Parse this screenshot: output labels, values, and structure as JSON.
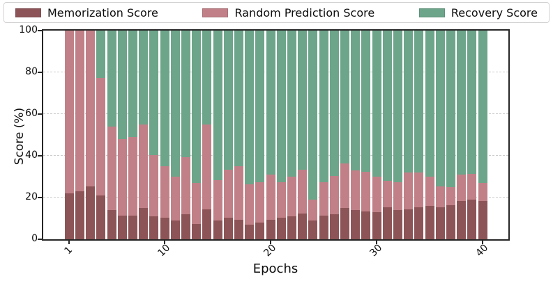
{
  "colors": {
    "memorization": "#8D5457",
    "random_prediction": "#C18087",
    "recovery": "#6DA58A",
    "spine": "#262626",
    "gridline": "#cccccc",
    "legend_border": "#d2d2d2"
  },
  "legend": {
    "items": [
      "Memorization Score",
      "Random Prediction Score",
      "Recovery Score"
    ]
  },
  "axes": {
    "xlabel": "Epochs",
    "ylabel": "Score (%)"
  },
  "chart_data": {
    "type": "bar",
    "subtype": "stacked-vertical",
    "title": "",
    "xlabel": "Epochs",
    "ylabel": "Score (%)",
    "ylim": [
      0,
      100
    ],
    "yticks": [
      0,
      20,
      40,
      60,
      80,
      100
    ],
    "xticks": [
      1,
      10,
      20,
      30,
      40
    ],
    "grid": "horizontal-dashed",
    "legend_position": "top-outside",
    "x": [
      1,
      2,
      3,
      4,
      5,
      6,
      7,
      8,
      9,
      10,
      11,
      12,
      13,
      14,
      15,
      16,
      17,
      18,
      19,
      20,
      21,
      22,
      23,
      24,
      25,
      26,
      27,
      28,
      29,
      30,
      31,
      32,
      33,
      34,
      35,
      36,
      37,
      38,
      39,
      40
    ],
    "series": [
      {
        "name": "Memorization Score",
        "color": "#8D5457",
        "values": [
          22,
          23,
          25.5,
          21,
          14,
          11.5,
          11.5,
          15,
          11,
          10.5,
          9,
          12,
          7.5,
          14.5,
          9,
          10.5,
          9.5,
          7,
          8,
          9.5,
          10.5,
          11,
          12.5,
          9,
          11.5,
          12,
          15,
          14,
          13.5,
          13,
          15.5,
          14,
          14.5,
          15.5,
          16,
          15.5,
          16.5,
          18.5,
          19,
          18.5
        ]
      },
      {
        "name": "Random Prediction Score",
        "color": "#C18087",
        "values": [
          78,
          77,
          74.5,
          56.5,
          40,
          36.5,
          37.5,
          40,
          29.5,
          24.5,
          21,
          27.5,
          19.5,
          40.5,
          19.5,
          23,
          25.5,
          19.5,
          19.5,
          21.5,
          17,
          19,
          21,
          10,
          16,
          18.5,
          21.5,
          19,
          19,
          17,
          12.5,
          13.5,
          17.5,
          16.5,
          14,
          10,
          8.5,
          12.5,
          12.5,
          8.5
        ]
      },
      {
        "name": "Recovery Score",
        "color": "#6DA58A",
        "values": [
          0,
          0,
          0,
          22.5,
          46,
          52,
          51,
          45,
          59.5,
          65,
          70,
          60.5,
          73,
          45,
          71.5,
          66.5,
          65,
          73.5,
          72.5,
          69,
          72.5,
          70,
          66.5,
          81,
          72.5,
          69.5,
          63.5,
          67,
          67.5,
          70,
          72,
          72.5,
          68,
          68,
          70,
          74.5,
          75,
          69,
          68.5,
          73
        ]
      }
    ]
  }
}
